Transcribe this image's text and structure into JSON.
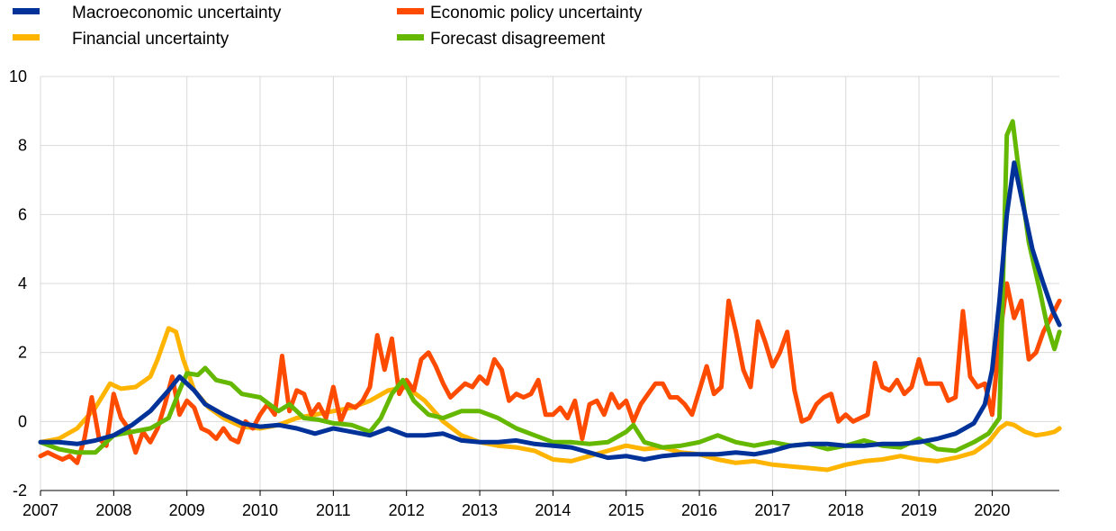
{
  "chart_data": {
    "type": "line",
    "title": "",
    "xlabel": "",
    "ylabel": "",
    "xlim": [
      2007,
      2020.917
    ],
    "ylim": [
      -2,
      10
    ],
    "y_ticks": [
      "-2",
      "0",
      "2",
      "4",
      "6",
      "8",
      "10"
    ],
    "x_ticks": [
      "2007",
      "2008",
      "2009",
      "2010",
      "2011",
      "2012",
      "2013",
      "2014",
      "2015",
      "2016",
      "2017",
      "2018",
      "2019",
      "2020"
    ],
    "grid": "vertical and horizontal",
    "legend_position": "top",
    "series": [
      {
        "name": "Macroeconomic uncertainty",
        "color": "#003299",
        "x": [
          2007.0,
          2007.25,
          2007.5,
          2007.75,
          2008.0,
          2008.25,
          2008.5,
          2008.75,
          2008.9,
          2009.1,
          2009.25,
          2009.5,
          2009.75,
          2010.0,
          2010.25,
          2010.5,
          2010.75,
          2011.0,
          2011.25,
          2011.5,
          2011.75,
          2012.0,
          2012.25,
          2012.5,
          2012.75,
          2013.0,
          2013.25,
          2013.5,
          2013.75,
          2014.0,
          2014.25,
          2014.5,
          2014.75,
          2015.0,
          2015.25,
          2015.5,
          2015.75,
          2016.0,
          2016.25,
          2016.5,
          2016.75,
          2017.0,
          2017.25,
          2017.5,
          2017.75,
          2018.0,
          2018.25,
          2018.5,
          2018.75,
          2019.0,
          2019.25,
          2019.5,
          2019.75,
          2019.9,
          2020.0,
          2020.1,
          2020.2,
          2020.3,
          2020.4,
          2020.55,
          2020.7,
          2020.83,
          2020.92
        ],
        "values": [
          -0.6,
          -0.6,
          -0.65,
          -0.55,
          -0.4,
          -0.1,
          0.3,
          0.9,
          1.3,
          0.9,
          0.5,
          0.2,
          -0.05,
          -0.15,
          -0.1,
          -0.2,
          -0.35,
          -0.2,
          -0.3,
          -0.4,
          -0.2,
          -0.4,
          -0.4,
          -0.35,
          -0.55,
          -0.6,
          -0.6,
          -0.55,
          -0.65,
          -0.7,
          -0.75,
          -0.9,
          -1.05,
          -1.0,
          -1.1,
          -1.0,
          -0.95,
          -0.95,
          -0.95,
          -0.9,
          -0.95,
          -0.85,
          -0.7,
          -0.65,
          -0.65,
          -0.7,
          -0.7,
          -0.65,
          -0.65,
          -0.6,
          -0.5,
          -0.35,
          -0.05,
          0.5,
          1.5,
          3.5,
          6.0,
          7.5,
          6.5,
          5.0,
          4.0,
          3.2,
          2.8
        ]
      },
      {
        "name": "Economic policy uncertainty",
        "color": "#ff4b00",
        "x": [
          2007.0,
          2007.1,
          2007.2,
          2007.3,
          2007.4,
          2007.5,
          2007.6,
          2007.7,
          2007.8,
          2007.9,
          2008.0,
          2008.1,
          2008.2,
          2008.3,
          2008.4,
          2008.5,
          2008.6,
          2008.7,
          2008.8,
          2008.9,
          2009.0,
          2009.1,
          2009.2,
          2009.3,
          2009.4,
          2009.5,
          2009.6,
          2009.7,
          2009.8,
          2009.9,
          2010.0,
          2010.1,
          2010.2,
          2010.3,
          2010.4,
          2010.5,
          2010.6,
          2010.7,
          2010.8,
          2010.9,
          2011.0,
          2011.1,
          2011.2,
          2011.3,
          2011.4,
          2011.5,
          2011.6,
          2011.7,
          2011.8,
          2011.9,
          2012.0,
          2012.1,
          2012.2,
          2012.3,
          2012.4,
          2012.5,
          2012.6,
          2012.7,
          2012.8,
          2012.9,
          2013.0,
          2013.1,
          2013.2,
          2013.3,
          2013.4,
          2013.5,
          2013.6,
          2013.7,
          2013.8,
          2013.9,
          2014.0,
          2014.1,
          2014.2,
          2014.3,
          2014.4,
          2014.5,
          2014.6,
          2014.7,
          2014.8,
          2014.9,
          2015.0,
          2015.1,
          2015.2,
          2015.3,
          2015.4,
          2015.5,
          2015.6,
          2015.7,
          2015.8,
          2015.9,
          2016.0,
          2016.1,
          2016.2,
          2016.3,
          2016.4,
          2016.5,
          2016.6,
          2016.7,
          2016.8,
          2016.9,
          2017.0,
          2017.1,
          2017.2,
          2017.3,
          2017.4,
          2017.5,
          2017.6,
          2017.7,
          2017.8,
          2017.9,
          2018.0,
          2018.1,
          2018.2,
          2018.3,
          2018.4,
          2018.5,
          2018.6,
          2018.7,
          2018.8,
          2018.9,
          2019.0,
          2019.1,
          2019.2,
          2019.3,
          2019.4,
          2019.5,
          2019.6,
          2019.7,
          2019.8,
          2019.9,
          2020.0,
          2020.1,
          2020.2,
          2020.3,
          2020.4,
          2020.5,
          2020.6,
          2020.7,
          2020.8,
          2020.92
        ],
        "values": [
          -1.0,
          -0.9,
          -1.0,
          -1.1,
          -1.0,
          -1.2,
          -0.5,
          0.7,
          -0.5,
          -0.7,
          0.8,
          0.1,
          -0.2,
          -0.9,
          -0.3,
          -0.6,
          -0.2,
          0.5,
          1.3,
          0.2,
          0.6,
          0.4,
          -0.2,
          -0.3,
          -0.5,
          -0.2,
          -0.5,
          -0.6,
          0.0,
          -0.2,
          0.2,
          0.5,
          0.2,
          1.9,
          0.3,
          0.9,
          0.8,
          0.2,
          0.5,
          0.1,
          1.0,
          0.0,
          0.5,
          0.4,
          0.6,
          1.0,
          2.5,
          1.5,
          2.4,
          0.8,
          1.2,
          0.9,
          1.8,
          2.0,
          1.6,
          1.1,
          0.7,
          0.9,
          1.1,
          1.0,
          1.3,
          1.1,
          1.8,
          1.5,
          0.6,
          0.8,
          0.7,
          0.8,
          1.2,
          0.2,
          0.2,
          0.4,
          0.1,
          0.6,
          -0.5,
          0.5,
          0.6,
          0.2,
          0.8,
          0.4,
          0.6,
          0.0,
          0.5,
          0.8,
          1.1,
          1.1,
          0.7,
          0.7,
          0.5,
          0.2,
          0.9,
          1.6,
          0.8,
          1.0,
          3.5,
          2.6,
          1.5,
          1.0,
          2.9,
          2.3,
          1.6,
          2.0,
          2.6,
          0.9,
          0.0,
          0.1,
          0.5,
          0.7,
          0.8,
          0.0,
          0.2,
          0.0,
          0.1,
          0.2,
          1.7,
          1.0,
          0.9,
          1.2,
          0.8,
          1.0,
          1.8,
          1.1,
          1.1,
          1.1,
          0.6,
          0.7,
          3.2,
          1.3,
          1.0,
          1.1,
          0.2,
          2.4,
          4.0,
          3.0,
          3.5,
          1.8,
          2.0,
          2.6,
          3.0,
          3.5
        ]
      },
      {
        "name": "Financial uncertainty",
        "color": "#ffb400",
        "x": [
          2007.0,
          2007.25,
          2007.5,
          2007.75,
          2007.95,
          2008.1,
          2008.3,
          2008.5,
          2008.6,
          2008.75,
          2008.85,
          2008.95,
          2009.1,
          2009.3,
          2009.5,
          2009.75,
          2010.0,
          2010.25,
          2010.5,
          2010.75,
          2011.0,
          2011.25,
          2011.5,
          2011.75,
          2012.0,
          2012.25,
          2012.5,
          2012.75,
          2013.0,
          2013.25,
          2013.5,
          2013.75,
          2014.0,
          2014.25,
          2014.5,
          2014.75,
          2015.0,
          2015.25,
          2015.5,
          2015.75,
          2016.0,
          2016.25,
          2016.5,
          2016.75,
          2017.0,
          2017.25,
          2017.5,
          2017.75,
          2018.0,
          2018.25,
          2018.5,
          2018.75,
          2019.0,
          2019.25,
          2019.5,
          2019.75,
          2019.95,
          2020.1,
          2020.2,
          2020.3,
          2020.45,
          2020.6,
          2020.75,
          2020.85,
          2020.92
        ],
        "values": [
          -0.6,
          -0.5,
          -0.2,
          0.4,
          1.1,
          0.95,
          1.0,
          1.3,
          1.8,
          2.7,
          2.6,
          1.8,
          0.9,
          0.4,
          0.1,
          -0.15,
          -0.2,
          -0.1,
          0.1,
          0.2,
          0.3,
          0.4,
          0.6,
          0.9,
          1.0,
          0.6,
          0.0,
          -0.4,
          -0.6,
          -0.7,
          -0.75,
          -0.85,
          -1.1,
          -1.15,
          -1.0,
          -0.85,
          -0.7,
          -0.8,
          -0.75,
          -0.9,
          -0.95,
          -1.1,
          -1.2,
          -1.15,
          -1.25,
          -1.3,
          -1.35,
          -1.4,
          -1.25,
          -1.15,
          -1.1,
          -1.0,
          -1.1,
          -1.15,
          -1.05,
          -0.9,
          -0.6,
          -0.2,
          -0.05,
          -0.1,
          -0.3,
          -0.4,
          -0.35,
          -0.3,
          -0.2
        ]
      },
      {
        "name": "Forecast disagreement",
        "color": "#65b800",
        "x": [
          2007.0,
          2007.25,
          2007.5,
          2007.75,
          2008.0,
          2008.25,
          2008.5,
          2008.75,
          2008.9,
          2009.0,
          2009.15,
          2009.25,
          2009.4,
          2009.6,
          2009.75,
          2010.0,
          2010.25,
          2010.4,
          2010.6,
          2010.8,
          2011.0,
          2011.25,
          2011.5,
          2011.65,
          2011.8,
          2011.95,
          2012.1,
          2012.3,
          2012.5,
          2012.75,
          2013.0,
          2013.25,
          2013.5,
          2013.75,
          2014.0,
          2014.25,
          2014.5,
          2014.75,
          2015.0,
          2015.1,
          2015.25,
          2015.5,
          2015.75,
          2016.0,
          2016.25,
          2016.5,
          2016.75,
          2017.0,
          2017.25,
          2017.5,
          2017.75,
          2018.0,
          2018.25,
          2018.5,
          2018.75,
          2019.0,
          2019.25,
          2019.5,
          2019.75,
          2019.95,
          2020.1,
          2020.2,
          2020.28,
          2020.35,
          2020.5,
          2020.65,
          2020.75,
          2020.85,
          2020.92
        ],
        "values": [
          -0.6,
          -0.8,
          -0.9,
          -0.9,
          -0.4,
          -0.3,
          -0.2,
          0.1,
          0.9,
          1.4,
          1.35,
          1.55,
          1.2,
          1.1,
          0.8,
          0.7,
          0.3,
          0.5,
          0.1,
          0.05,
          -0.05,
          -0.1,
          -0.3,
          0.1,
          0.8,
          1.2,
          0.6,
          0.2,
          0.1,
          0.3,
          0.3,
          0.1,
          -0.2,
          -0.4,
          -0.6,
          -0.6,
          -0.65,
          -0.6,
          -0.3,
          -0.1,
          -0.6,
          -0.75,
          -0.7,
          -0.6,
          -0.4,
          -0.6,
          -0.7,
          -0.6,
          -0.7,
          -0.65,
          -0.8,
          -0.7,
          -0.55,
          -0.7,
          -0.75,
          -0.5,
          -0.8,
          -0.85,
          -0.6,
          -0.35,
          0.1,
          8.3,
          8.7,
          7.5,
          5.2,
          3.8,
          2.8,
          2.1,
          2.6
        ]
      }
    ]
  }
}
